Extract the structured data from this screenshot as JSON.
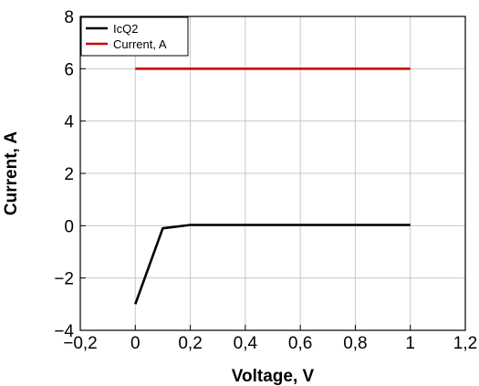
{
  "chart_data": {
    "type": "line",
    "xlabel": "Voltage, V",
    "ylabel": "Current, A",
    "xlim": [
      -0.2,
      1.2
    ],
    "ylim": [
      -4,
      8
    ],
    "xticks": [
      -0.2,
      0,
      0.2,
      0.4,
      0.6,
      0.8,
      1,
      1.2
    ],
    "xtick_labels": [
      "−0,2",
      "0",
      "0,2",
      "0,4",
      "0,6",
      "0,8",
      "1",
      "1,2"
    ],
    "yticks": [
      -4,
      -2,
      0,
      2,
      4,
      6,
      8
    ],
    "ytick_labels": [
      "−4",
      "−2",
      "0",
      "2",
      "4",
      "6",
      "8"
    ],
    "grid": true,
    "legend_position": "top-left",
    "series": [
      {
        "name": "IcQ2",
        "color": "#000000",
        "x": [
          0,
          0.1,
          0.2,
          0.3,
          0.4,
          0.5,
          0.6,
          0.7,
          0.8,
          0.9,
          1.0
        ],
        "y": [
          -3,
          -0.1,
          0.03,
          0.03,
          0.03,
          0.03,
          0.03,
          0.03,
          0.03,
          0.03,
          0.03
        ]
      },
      {
        "name": "Current, A",
        "color": "#cc0000",
        "x": [
          0,
          1.0
        ],
        "y": [
          6,
          6
        ]
      }
    ]
  }
}
